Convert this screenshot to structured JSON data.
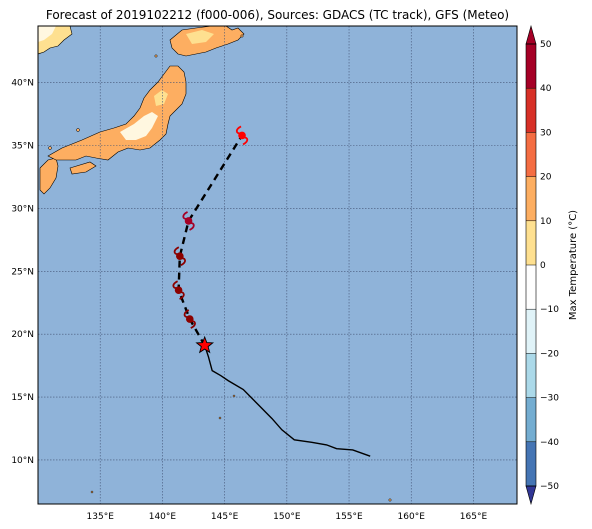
{
  "title": "Forecast of 2019102212 (f000-006), Sources: GDACS (TC track), GFS (Meteo)",
  "map": {
    "extent": {
      "lon_min": 130,
      "lon_max": 168.5,
      "lat_min": 6.5,
      "lat_max": 44.5
    },
    "lon_ticks": [
      135,
      140,
      145,
      150,
      155,
      160,
      165
    ],
    "lon_tick_labels": [
      "135°E",
      "140°E",
      "145°E",
      "150°E",
      "155°E",
      "160°E",
      "165°E"
    ],
    "lat_ticks": [
      10,
      15,
      20,
      25,
      30,
      35,
      40
    ],
    "lat_tick_labels": [
      "10°N",
      "15°N",
      "20°N",
      "25°N",
      "30°N",
      "35°N",
      "40°N"
    ],
    "ocean_color": "#8fb3d9",
    "land_colors": [
      "#fdae61",
      "#fee090",
      "#fff7e0"
    ]
  },
  "track": {
    "past": [
      [
        156.7,
        10.3
      ],
      [
        155.3,
        10.8
      ],
      [
        154.0,
        10.9
      ],
      [
        153.2,
        11.2
      ],
      [
        152.0,
        11.4
      ],
      [
        150.6,
        11.6
      ],
      [
        149.6,
        12.4
      ],
      [
        148.8,
        13.3
      ],
      [
        147.5,
        14.6
      ],
      [
        146.5,
        15.6
      ],
      [
        145.3,
        16.3
      ],
      [
        144.7,
        16.7
      ],
      [
        144.0,
        17.1
      ],
      [
        143.7,
        18.2
      ],
      [
        143.4,
        19.1
      ]
    ],
    "forecast": [
      [
        143.4,
        19.1
      ],
      [
        142.2,
        21.2
      ],
      [
        141.3,
        23.5
      ],
      [
        141.4,
        26.2
      ],
      [
        142.1,
        29.0
      ],
      [
        144.0,
        32.0
      ],
      [
        146.4,
        35.8
      ]
    ],
    "current_position": [
      143.4,
      19.1
    ],
    "storm_positions": [
      {
        "lon": 142.2,
        "lat": 21.2,
        "color": "#8b0000"
      },
      {
        "lon": 141.3,
        "lat": 23.5,
        "color": "#8b0000"
      },
      {
        "lon": 141.4,
        "lat": 26.2,
        "color": "#8b0000"
      },
      {
        "lon": 142.1,
        "lat": 29.0,
        "color": "#a50026"
      },
      {
        "lon": 146.4,
        "lat": 35.8,
        "color": "#ff0000"
      }
    ]
  },
  "colorbar": {
    "label": "Max Temperature (°C)",
    "ticks": [
      50,
      40,
      30,
      20,
      10,
      0,
      -10,
      -20,
      -30,
      -40,
      -50
    ],
    "colors": [
      "#313695",
      "#4575b4",
      "#74add1",
      "#abd9e9",
      "#e0f3f8",
      "#fefefe",
      "#fee090",
      "#fdae61",
      "#f46d43",
      "#d73027",
      "#a50026"
    ]
  }
}
